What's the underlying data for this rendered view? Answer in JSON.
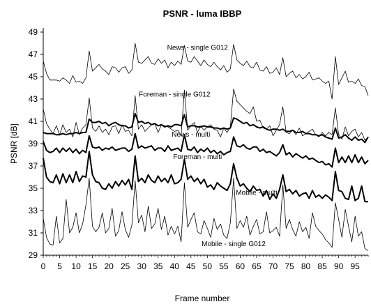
{
  "chart_data": {
    "type": "line",
    "title": "PSNR - luma IBBP",
    "xlabel": "Frame number",
    "ylabel": "PSNR [dB]",
    "xlim": [
      0,
      99
    ],
    "ylim": [
      29,
      49
    ],
    "x_ticks": [
      0,
      5,
      10,
      15,
      20,
      25,
      30,
      35,
      40,
      45,
      50,
      55,
      60,
      65,
      70,
      75,
      80,
      85,
      90,
      95
    ],
    "y_ticks": [
      29,
      31,
      33,
      35,
      37,
      39,
      41,
      43,
      45,
      47,
      49
    ],
    "grid": false,
    "series": [
      {
        "name": "News - single G012",
        "color": "#000000",
        "width": 0.8,
        "values": [
          46.4,
          45.3,
          44.7,
          44.7,
          44.7,
          44.6,
          44.9,
          44.7,
          44.4,
          45.1,
          44.5,
          44.6,
          44.4,
          44.9,
          47.3,
          45.5,
          45.8,
          46.1,
          45.7,
          45.5,
          45.2,
          45.9,
          45.8,
          45.4,
          45.8,
          45.9,
          45.3,
          45.6,
          48.0,
          46.3,
          46.2,
          46.5,
          46.8,
          46.2,
          46.1,
          46.6,
          46.2,
          46.5,
          45.8,
          46.3,
          46.0,
          46.4,
          46.1,
          47.8,
          46.4,
          46.3,
          46.8,
          46.4,
          46.0,
          46.5,
          46.1,
          45.9,
          46.3,
          45.9,
          45.6,
          46.0,
          45.4,
          45.7,
          47.9,
          46.5,
          46.2,
          46.0,
          46.4,
          45.9,
          45.8,
          46.3,
          45.6,
          45.5,
          45.9,
          45.3,
          45.4,
          45.8,
          45.2,
          46.7,
          45.0,
          45.3,
          45.5,
          44.9,
          45.2,
          44.8,
          45.0,
          45.4,
          44.7,
          44.8,
          44.9,
          44.6,
          44.4,
          44.6,
          43.0,
          46.8,
          44.3,
          44.9,
          45.5,
          44.5,
          44.6,
          44.4,
          44.8,
          44.2,
          44.1,
          43.3
        ]
      },
      {
        "name": "Foreman - single G012",
        "color": "#000000",
        "width": 0.8,
        "values": [
          42.1,
          40.8,
          40.3,
          39.9,
          40.6,
          39.8,
          40.7,
          40.0,
          40.3,
          39.6,
          40.9,
          39.8,
          40.4,
          40.7,
          43.1,
          40.4,
          40.1,
          40.6,
          40.0,
          40.3,
          39.8,
          40.5,
          40.6,
          39.9,
          40.7,
          40.1,
          40.2,
          39.7,
          43.3,
          40.3,
          40.7,
          40.1,
          40.4,
          40.7,
          40.8,
          40.0,
          40.7,
          40.6,
          40.5,
          40.3,
          40.1,
          40.2,
          39.7,
          43.8,
          40.2,
          40.6,
          40.9,
          40.0,
          40.6,
          40.2,
          40.5,
          40.7,
          40.3,
          40.2,
          39.6,
          40.4,
          40.0,
          40.5,
          43.9,
          42.8,
          42.5,
          42.2,
          41.9,
          41.7,
          42.3,
          41.0,
          41.1,
          40.4,
          40.3,
          40.6,
          39.7,
          40.2,
          40.7,
          42.3,
          40.0,
          39.9,
          40.2,
          39.8,
          40.4,
          39.7,
          39.9,
          40.1,
          40.3,
          39.8,
          39.6,
          40.0,
          39.7,
          40.0,
          39.8,
          42.2,
          39.8,
          39.4,
          40.5,
          39.7,
          40.1,
          40.3,
          39.6,
          40.0,
          39.3,
          39.6
        ]
      },
      {
        "name": "News - multi",
        "color": "#000000",
        "width": 2,
        "values": [
          40.0,
          39.9,
          39.9,
          39.9,
          39.8,
          39.8,
          39.9,
          39.8,
          39.9,
          39.9,
          40.0,
          39.9,
          40.0,
          40.0,
          41.2,
          40.9,
          40.9,
          41.0,
          40.8,
          40.9,
          40.6,
          40.8,
          40.9,
          40.7,
          40.6,
          40.6,
          40.4,
          40.5,
          41.7,
          40.9,
          41.0,
          40.8,
          40.9,
          40.7,
          40.8,
          40.6,
          40.7,
          40.5,
          40.6,
          40.5,
          40.7,
          40.7,
          40.6,
          41.6,
          40.5,
          40.6,
          40.6,
          40.5,
          40.5,
          40.6,
          40.5,
          40.5,
          40.4,
          40.4,
          40.3,
          40.4,
          40.3,
          40.4,
          41.3,
          41.2,
          41.0,
          40.8,
          40.9,
          40.6,
          40.7,
          40.5,
          40.4,
          40.5,
          40.3,
          40.2,
          40.3,
          40.3,
          40.2,
          40.3,
          40.1,
          40.1,
          40.2,
          40.0,
          40.0,
          40.1,
          39.9,
          39.9,
          39.8,
          39.8,
          39.7,
          39.8,
          39.6,
          39.5,
          39.4,
          40.4,
          39.5,
          39.6,
          39.8,
          39.5,
          39.3,
          39.6,
          39.3,
          39.4,
          39.1,
          39.6
        ]
      },
      {
        "name": "Foreman - multi",
        "color": "#000000",
        "width": 2,
        "values": [
          39.2,
          38.4,
          38.2,
          38.3,
          38.6,
          38.2,
          38.6,
          38.3,
          38.6,
          38.2,
          38.5,
          38.1,
          38.4,
          38.2,
          39.7,
          38.7,
          38.6,
          38.7,
          38.4,
          38.6,
          38.5,
          38.7,
          38.4,
          38.5,
          38.6,
          38.6,
          38.3,
          38.5,
          39.9,
          38.6,
          38.8,
          38.6,
          38.7,
          38.8,
          38.4,
          38.6,
          38.6,
          38.3,
          38.8,
          38.4,
          38.5,
          38.6,
          38.3,
          39.8,
          38.5,
          38.4,
          38.7,
          38.2,
          38.5,
          38.3,
          38.6,
          38.2,
          38.4,
          38.1,
          38.3,
          38.0,
          38.2,
          38.3,
          39.6,
          38.8,
          38.7,
          38.9,
          38.6,
          38.5,
          38.7,
          38.7,
          38.3,
          38.5,
          38.2,
          38.3,
          38.1,
          37.9,
          38.2,
          38.9,
          38.0,
          38.2,
          37.8,
          38.1,
          37.9,
          37.7,
          37.9,
          37.6,
          37.7,
          37.5,
          37.3,
          37.4,
          37.1,
          37.2,
          36.9,
          38.6,
          37.3,
          37.8,
          37.3,
          37.9,
          37.3,
          38.0,
          37.3,
          37.8,
          37.2,
          37.5
        ]
      },
      {
        "name": "Mobile - multi",
        "color": "#000000",
        "width": 2,
        "values": [
          37.7,
          36.0,
          35.6,
          35.5,
          36.2,
          35.4,
          36.3,
          35.5,
          36.2,
          35.5,
          36.5,
          35.6,
          36.1,
          36.0,
          38.3,
          36.2,
          35.6,
          35.5,
          35.0,
          34.9,
          35.4,
          35.0,
          35.6,
          35.2,
          35.7,
          35.3,
          35.8,
          34.9,
          37.9,
          35.6,
          35.9,
          35.5,
          36.2,
          35.7,
          35.5,
          36.1,
          35.6,
          35.9,
          35.5,
          36.2,
          35.4,
          35.5,
          35.8,
          37.6,
          35.8,
          36.1,
          35.6,
          35.9,
          35.4,
          35.8,
          35.1,
          35.3,
          34.9,
          35.5,
          35.2,
          35.0,
          34.8,
          35.4,
          37.2,
          35.9,
          35.2,
          35.4,
          35.0,
          34.7,
          35.2,
          34.8,
          34.9,
          34.3,
          34.8,
          34.0,
          34.5,
          34.1,
          34.9,
          36.2,
          34.7,
          34.9,
          34.5,
          34.8,
          34.3,
          34.5,
          34.6,
          34.1,
          34.8,
          34.2,
          34.4,
          34.1,
          34.4,
          34.2,
          33.9,
          36.5,
          34.8,
          34.7,
          34.1,
          34.0,
          35.2,
          33.9,
          34.1,
          35.2,
          33.8,
          33.8
        ]
      },
      {
        "name": "Mobile - single G012",
        "color": "#000000",
        "width": 0.8,
        "values": [
          32.3,
          30.6,
          30.0,
          29.9,
          32.5,
          30.1,
          30.5,
          34.0,
          31.0,
          31.5,
          32.8,
          31.0,
          31.8,
          33.5,
          35.9,
          31.6,
          31.1,
          31.5,
          32.8,
          31.0,
          31.4,
          33.2,
          30.7,
          31.2,
          32.9,
          31.3,
          30.6,
          31.7,
          35.7,
          31.9,
          32.6,
          31.1,
          33.4,
          31.4,
          31.8,
          33.2,
          31.3,
          32.5,
          30.8,
          31.6,
          30.9,
          31.6,
          30.2,
          35.5,
          31.5,
          32.2,
          32.8,
          31.1,
          30.9,
          32.1,
          31.4,
          30.6,
          32.3,
          31.3,
          31.8,
          30.8,
          30.5,
          31.9,
          35.9,
          31.4,
          32.1,
          31.5,
          32.5,
          30.8,
          31.6,
          32.2,
          30.9,
          31.1,
          32.9,
          31.0,
          31.2,
          31.5,
          30.7,
          35.3,
          31.4,
          32.2,
          31.3,
          30.7,
          32.0,
          31.1,
          31.5,
          30.5,
          32.8,
          31.6,
          31.2,
          30.9,
          30.4,
          30.1,
          29.7,
          33.7,
          32.2,
          30.6,
          33.1,
          31.6,
          30.2,
          32.5,
          30.7,
          31.1,
          29.6,
          29.4
        ]
      }
    ],
    "annotations": [
      {
        "text": "News - single G012",
        "x": 47,
        "y": 47.6
      },
      {
        "text": "Foreman - single G012",
        "x": 40,
        "y": 43.4
      },
      {
        "text": "News - multi",
        "x": 45,
        "y": 39.8
      },
      {
        "text": "Foreman - multi",
        "x": 47,
        "y": 37.8
      },
      {
        "text": "Mobile - multi",
        "x": 65,
        "y": 34.6
      },
      {
        "text": "Mobile - single G012",
        "x": 58,
        "y": 30.0
      }
    ]
  }
}
